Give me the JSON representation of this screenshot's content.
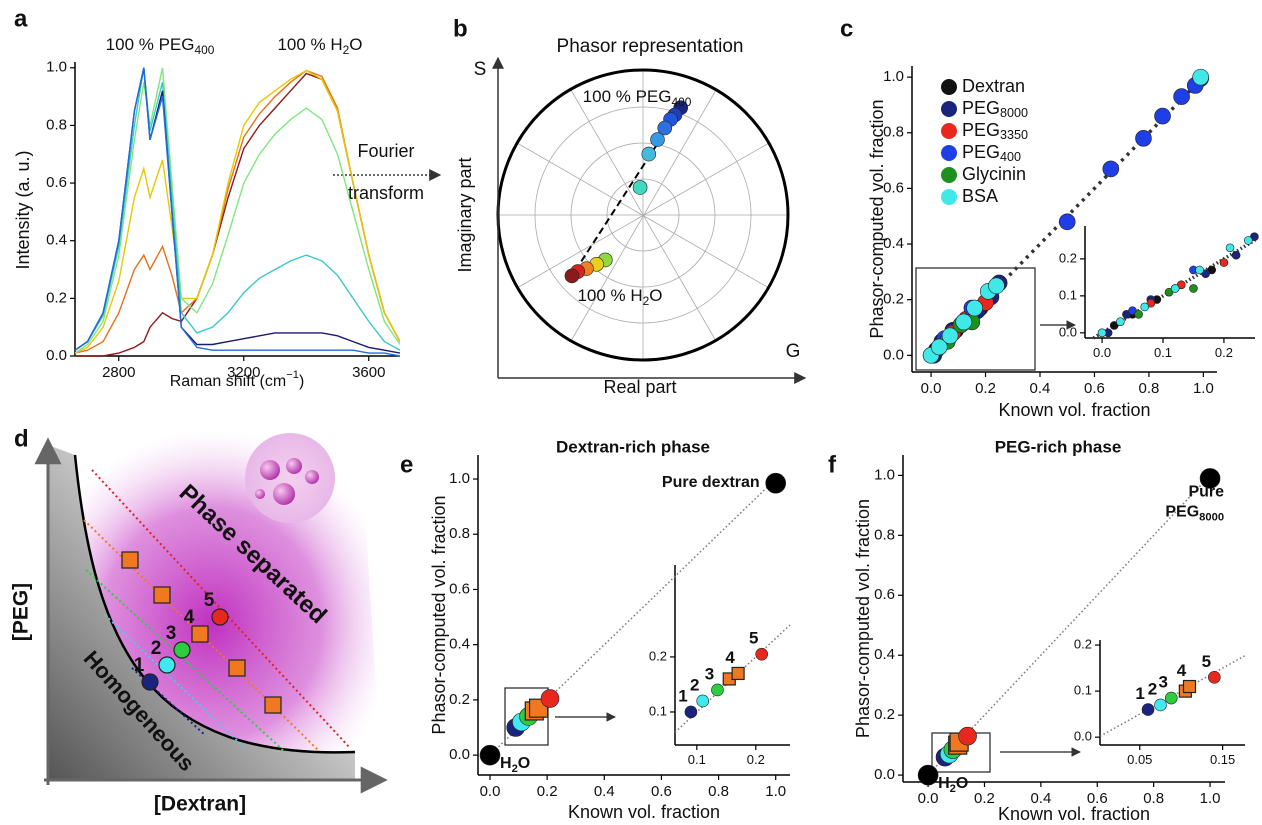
{
  "chart_data": [
    {
      "panel": "a",
      "type": "line",
      "ylabel": "Intensity (a. u.)",
      "xlabel": {
        "text": "Raman shift (cm",
        "sup": "−1",
        "end": ")"
      },
      "annotations": [
        {
          "text": "100 % PEG",
          "sub": "400",
          "color": "#1a237e"
        },
        {
          "text": "100 % H",
          "sub": "2",
          "end": "O",
          "color": "#8b1a1a"
        }
      ],
      "note": {
        "text": "Fourier",
        "line2": "transform"
      },
      "x": [
        2660,
        2700,
        2750,
        2800,
        2850,
        2880,
        2900,
        2940,
        2970,
        3000,
        3050,
        3100,
        3150,
        3200,
        3250,
        3300,
        3350,
        3400,
        3450,
        3500,
        3550,
        3600,
        3650,
        3700
      ],
      "series": [
        {
          "color": "#8b1a1a",
          "values": [
            0,
            0,
            0,
            0.01,
            0.03,
            0.05,
            0.1,
            0.15,
            0.13,
            0.12,
            0.2,
            0.35,
            0.55,
            0.72,
            0.8,
            0.86,
            0.92,
            0.98,
            0.96,
            0.85,
            0.6,
            0.35,
            0.15,
            0.05
          ]
        },
        {
          "color": "#e8701a",
          "values": [
            0.01,
            0.02,
            0.05,
            0.15,
            0.3,
            0.35,
            0.3,
            0.38,
            0.28,
            0.15,
            0.2,
            0.35,
            0.58,
            0.76,
            0.84,
            0.9,
            0.95,
            0.99,
            0.97,
            0.86,
            0.6,
            0.35,
            0.15,
            0.05
          ]
        },
        {
          "color": "#e8c800",
          "values": [
            0.01,
            0.03,
            0.1,
            0.26,
            0.55,
            0.65,
            0.55,
            0.68,
            0.45,
            0.2,
            0.2,
            0.35,
            0.6,
            0.8,
            0.88,
            0.92,
            0.96,
            0.99,
            0.96,
            0.85,
            0.6,
            0.35,
            0.15,
            0.05
          ]
        },
        {
          "color": "#7ee87e",
          "values": [
            0.01,
            0.04,
            0.12,
            0.35,
            0.75,
            0.95,
            0.8,
            1.0,
            0.6,
            0.2,
            0.15,
            0.25,
            0.42,
            0.6,
            0.7,
            0.77,
            0.82,
            0.86,
            0.82,
            0.7,
            0.5,
            0.3,
            0.12,
            0.04
          ]
        },
        {
          "color": "#3cc8c8",
          "values": [
            0.02,
            0.05,
            0.14,
            0.38,
            0.8,
            1.0,
            0.78,
            0.95,
            0.55,
            0.15,
            0.08,
            0.1,
            0.15,
            0.22,
            0.27,
            0.3,
            0.33,
            0.35,
            0.33,
            0.28,
            0.2,
            0.12,
            0.05,
            0.02
          ]
        },
        {
          "color": "#1a1a6e",
          "values": [
            0.02,
            0.05,
            0.15,
            0.4,
            0.85,
            1.0,
            0.75,
            0.92,
            0.5,
            0.1,
            0.04,
            0.04,
            0.05,
            0.06,
            0.07,
            0.08,
            0.08,
            0.08,
            0.08,
            0.07,
            0.05,
            0.03,
            0.02,
            0.01
          ]
        },
        {
          "color": "#1f6fe0",
          "values": [
            0.02,
            0.05,
            0.15,
            0.4,
            0.85,
            1.0,
            0.75,
            0.9,
            0.5,
            0.1,
            0.03,
            0.02,
            0.02,
            0.02,
            0.02,
            0.02,
            0.02,
            0.02,
            0.02,
            0.02,
            0.02,
            0.01,
            0.01,
            0
          ]
        }
      ],
      "xlim": [
        2660,
        3700
      ],
      "ylim": [
        0,
        1.02
      ],
      "xticks": [
        2800,
        3200,
        3600
      ],
      "yticks": [
        {
          "value": 0,
          "label": "0.0"
        },
        0.2,
        0.4,
        0.6,
        0.8,
        {
          "value": 1,
          "label": "1.0"
        }
      ]
    },
    {
      "panel": "b",
      "type": "phasor",
      "title": "Phasor representation",
      "xlabel": "Real part",
      "ylabel": "Imaginary part",
      "x_axis_letter": "G",
      "y_axis_letter": "S",
      "annotations": [
        {
          "text": "100 % PEG",
          "sub": "400",
          "color": "#1a237e"
        },
        {
          "text": "100 % H",
          "sub": "2",
          "end": "O",
          "color": "#8b1a1a"
        }
      ],
      "x": [
        0.26,
        0.22,
        0.19,
        0.15,
        0.1,
        0.04,
        -0.02,
        -0.26,
        -0.32,
        -0.39,
        -0.45,
        -0.49
      ],
      "y": [
        0.74,
        0.69,
        0.66,
        0.6,
        0.52,
        0.42,
        0.19,
        -0.31,
        -0.34,
        -0.37,
        -0.39,
        -0.42
      ],
      "colors": [
        "#1a237e",
        "#1f3fbf",
        "#2255dd",
        "#2f6fe0",
        "#3399e6",
        "#44bbdd",
        "#40d8c0",
        "#8fd93a",
        "#e8d020",
        "#f08020",
        "#d82020",
        "#8b1a1a"
      ],
      "xlim": [
        -1,
        1
      ],
      "ylim": [
        -1,
        1
      ]
    },
    {
      "panel": "c",
      "type": "scatter",
      "ylabel": "Phasor-computed vol. fraction",
      "xlabel": "Known vol. fraction",
      "series": [
        {
          "name": "Dextran",
          "color": "#111111",
          "x": [
            0,
            0.02,
            0.05,
            0.09,
            0.13,
            0.18
          ],
          "y": [
            0,
            0.02,
            0.05,
            0.09,
            0.13,
            0.17
          ]
        },
        {
          "name": "PEG",
          "name_sub": "8000",
          "color": "#1a237e",
          "x": [
            0.01,
            0.04,
            0.08,
            0.12,
            0.17,
            0.22,
            0.25,
            0.99
          ],
          "y": [
            0,
            0.05,
            0.09,
            0.12,
            0.16,
            0.21,
            0.26,
            0.995
          ]
        },
        {
          "name": "PEG",
          "name_sub": "3350",
          "color": "#e8281e",
          "x": [
            0.03,
            0.08,
            0.13,
            0.2
          ],
          "y": [
            0.03,
            0.08,
            0.13,
            0.19
          ]
        },
        {
          "name": "PEG",
          "name_sub": "400",
          "color": "#1f3fe6",
          "x": [
            0.05,
            0.15,
            0.5,
            0.66,
            0.78,
            0.85,
            0.92,
            0.97
          ],
          "y": [
            0.06,
            0.17,
            0.48,
            0.67,
            0.78,
            0.86,
            0.93,
            0.97
          ]
        },
        {
          "name": "Glycinin",
          "color": "#1f8f1f",
          "x": [
            0.06,
            0.11,
            0.15
          ],
          "y": [
            0.05,
            0.11,
            0.12
          ]
        },
        {
          "name": "BSA",
          "color": "#40e8e8",
          "x": [
            0,
            0.03,
            0.07,
            0.12,
            0.16,
            0.21,
            0.24,
            0.99
          ],
          "y": [
            0,
            0.03,
            0.07,
            0.12,
            0.17,
            0.23,
            0.25,
            1.0
          ]
        }
      ],
      "xlim": [
        -0.07,
        1.05
      ],
      "ylim": [
        -0.06,
        1.04
      ],
      "xticks": [
        {
          "value": 0,
          "label": "0.0"
        },
        0.2,
        0.4,
        0.6,
        0.8,
        {
          "value": 1,
          "label": "1.0"
        }
      ],
      "yticks": [
        {
          "value": 0,
          "label": "0.0"
        },
        0.2,
        0.4,
        0.6,
        0.8,
        {
          "value": 1,
          "label": "1.0"
        }
      ],
      "inset": {
        "xlim": [
          -0.028,
          0.251
        ],
        "ylim": [
          -0.014,
          0.289
        ],
        "xticks": [
          {
            "value": 0,
            "label": "0.0"
          },
          0.1,
          0.2
        ],
        "yticks": [
          {
            "value": 0,
            "label": "0.0"
          },
          0.1,
          0.2
        ]
      }
    },
    {
      "panel": "d",
      "type": "diagram",
      "xlabel": "[Dextran]",
      "ylabel": "[PEG]",
      "regions": [
        "Phase separated",
        "Homogeneous"
      ],
      "points": [
        {
          "label": "1",
          "color": "#1a237e"
        },
        {
          "label": "2",
          "color": "#40e8f0"
        },
        {
          "label": "3",
          "color": "#2ecc40"
        },
        {
          "label": "4",
          "color": "#f07820",
          "marker": "square"
        },
        {
          "label": "5",
          "color": "#e8281e"
        }
      ]
    },
    {
      "panel": "e",
      "type": "scatter",
      "title": "Dextran-rich phase",
      "ylabel": "Phasor-computed vol. fraction",
      "xlabel": "Known vol. fraction",
      "points": [
        {
          "x": 0,
          "y": 0,
          "color": "#000000",
          "label": {
            "text": "H",
            "sub": "2",
            "end": "O"
          }
        },
        {
          "x": 1,
          "y": 0.985,
          "color": "#000000",
          "label": {
            "text": "Pure dextran"
          }
        },
        {
          "x": 0.09,
          "y": 0.1,
          "color": "#1a237e",
          "label": "1"
        },
        {
          "x": 0.11,
          "y": 0.12,
          "color": "#40e8f0",
          "label": "2"
        },
        {
          "x": 0.135,
          "y": 0.14,
          "color": "#2ecc40",
          "label": "3"
        },
        {
          "x": 0.155,
          "y": 0.16,
          "color": "#f07820",
          "marker": "square"
        },
        {
          "x": 0.17,
          "y": 0.17,
          "color": "#f07820",
          "marker": "square",
          "label": "4"
        },
        {
          "x": 0.21,
          "y": 0.205,
          "color": "#e8281e",
          "label": "5"
        }
      ],
      "xlim": [
        -0.042,
        1.05
      ],
      "ylim": [
        -0.072,
        1.087
      ],
      "xticks": [
        {
          "value": 0,
          "label": "0.0"
        },
        0.2,
        0.4,
        0.6,
        0.8,
        {
          "value": 1,
          "label": "1.0"
        }
      ],
      "yticks": [
        {
          "value": 0,
          "label": "0.0"
        },
        0.2,
        0.4,
        0.6,
        0.8,
        {
          "value": 1,
          "label": "1.0"
        }
      ],
      "inset": {
        "xlim": [
          0.063,
          0.258
        ],
        "ylim": [
          0.04,
          0.367
        ],
        "xticks": [
          0.1,
          0.2
        ],
        "yticks": [
          0.1,
          0.2
        ]
      }
    },
    {
      "panel": "f",
      "type": "scatter",
      "title": "PEG-rich phase",
      "ylabel": "Phasor-computed vol. fraction",
      "xlabel": "Known vol. fraction",
      "points": [
        {
          "x": 0,
          "y": 0,
          "color": "#000000",
          "label": {
            "text": "H",
            "sub": "2",
            "end": "O"
          }
        },
        {
          "x": 1,
          "y": 0.99,
          "color": "#000000",
          "label": {
            "text": "Pure",
            "line2": "PEG",
            "sub": "8000"
          }
        },
        {
          "x": 0.06,
          "y": 0.06,
          "color": "#1a237e",
          "label": "1"
        },
        {
          "x": 0.075,
          "y": 0.07,
          "color": "#40e8f0",
          "label": "2"
        },
        {
          "x": 0.088,
          "y": 0.085,
          "color": "#2ecc40",
          "label": "3"
        },
        {
          "x": 0.105,
          "y": 0.1,
          "color": "#f07820",
          "marker": "square"
        },
        {
          "x": 0.11,
          "y": 0.11,
          "color": "#f07820",
          "marker": "square",
          "label": "4"
        },
        {
          "x": 0.14,
          "y": 0.13,
          "color": "#e8281e",
          "label": "5"
        }
      ],
      "xlim": [
        -0.089,
        1.053
      ],
      "ylim": [
        -0.023,
        1.068
      ],
      "xticks": [
        {
          "value": 0,
          "label": "0.0"
        },
        0.2,
        0.4,
        0.6,
        0.8,
        {
          "value": 1,
          "label": "1.0"
        }
      ],
      "yticks": [
        {
          "value": 0,
          "label": "0.0"
        },
        0.2,
        0.4,
        0.6,
        0.8,
        {
          "value": 1,
          "label": "1.0"
        }
      ],
      "inset": {
        "xlim": [
          0.002,
          0.177
        ],
        "ylim": [
          -0.017,
          0.211
        ],
        "xticks": [
          0.05,
          0.15
        ],
        "yticks": [
          {
            "value": 0,
            "label": "0.0"
          },
          0.1,
          0.2
        ]
      }
    }
  ]
}
